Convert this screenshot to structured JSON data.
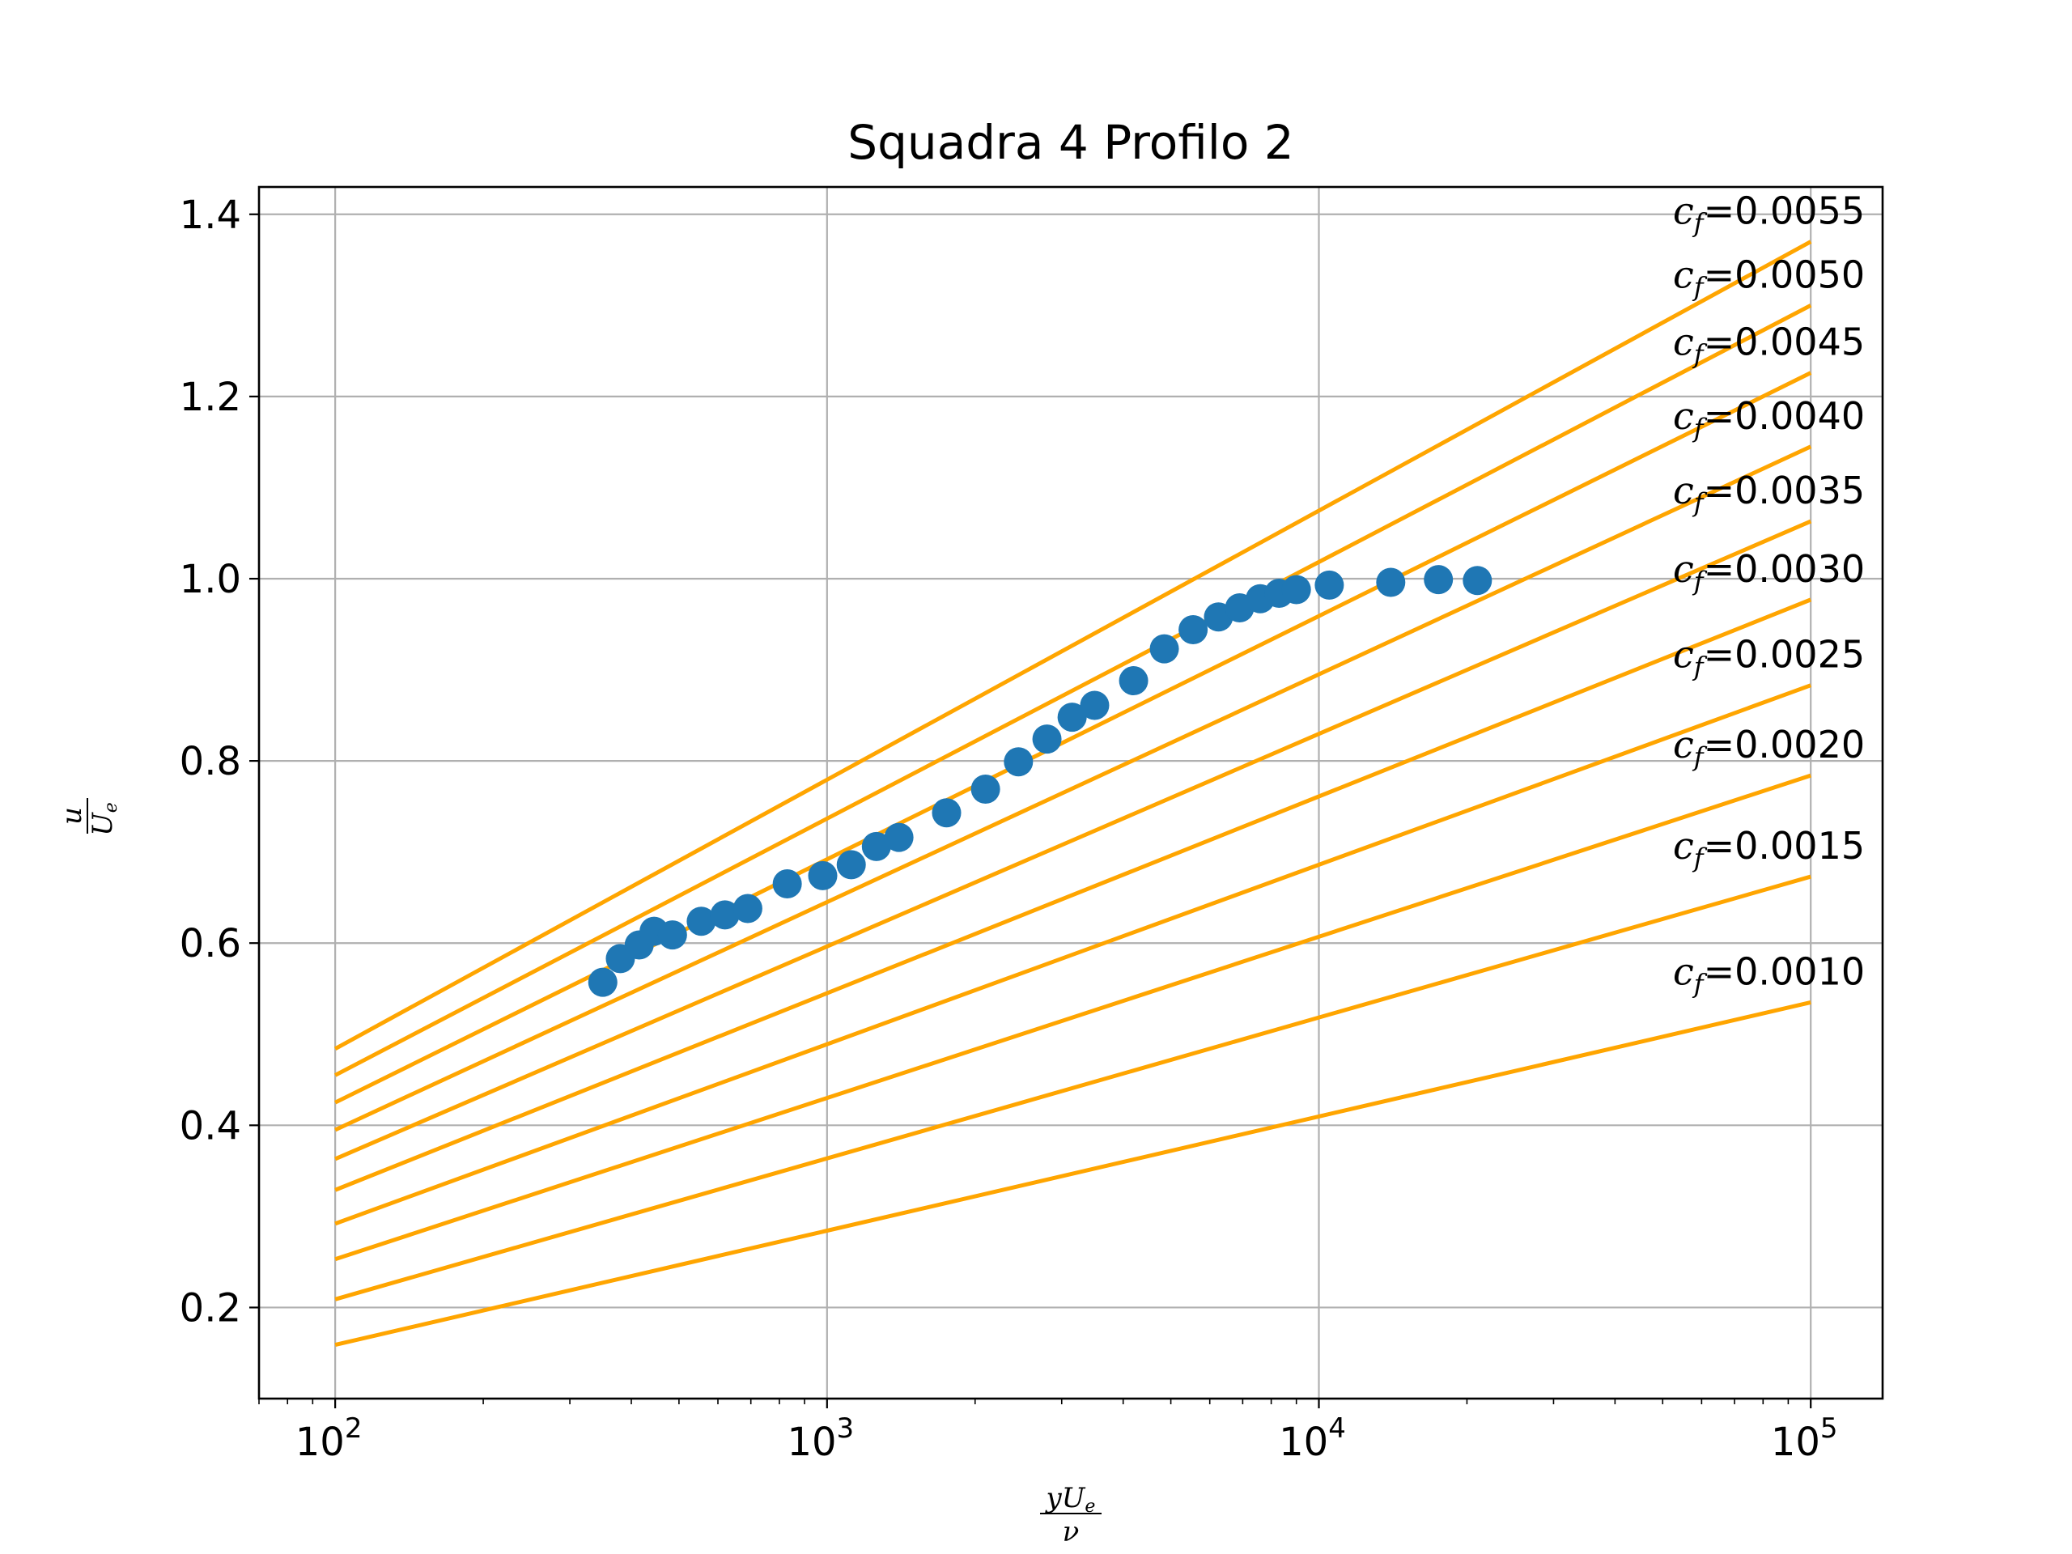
{
  "chart_data": {
    "type": "line",
    "title": "Squadra 4 Profilo 2",
    "xlabel": "yU_e / ν",
    "ylabel": "u / U_e",
    "x_scale": "log",
    "xlim": [
      70,
      140000
    ],
    "ylim": [
      0.1,
      1.43
    ],
    "x_ticks": [
      100,
      1000,
      10000,
      100000
    ],
    "x_tick_labels": [
      {
        "base": "10",
        "exp": "2"
      },
      {
        "base": "10",
        "exp": "3"
      },
      {
        "base": "10",
        "exp": "4"
      },
      {
        "base": "10",
        "exp": "5"
      }
    ],
    "y_ticks": [
      0.2,
      0.4,
      0.6,
      0.8,
      1.0,
      1.2,
      1.4
    ],
    "y_tick_labels": [
      "0.2",
      "0.4",
      "0.6",
      "0.8",
      "1.0",
      "1.2",
      "1.4"
    ],
    "grid": true,
    "line_color": "#FFA500",
    "marker_color": "#1F77B4",
    "cf_lines": [
      {
        "cf_value": "0.0010",
        "x": [
          100,
          100000
        ],
        "y": [
          0.159,
          0.535
        ]
      },
      {
        "cf_value": "0.0015",
        "x": [
          100,
          100000
        ],
        "y": [
          0.209,
          0.673
        ]
      },
      {
        "cf_value": "0.0020",
        "x": [
          100,
          100000
        ],
        "y": [
          0.253,
          0.784
        ]
      },
      {
        "cf_value": "0.0025",
        "x": [
          100,
          100000
        ],
        "y": [
          0.292,
          0.883
        ]
      },
      {
        "cf_value": "0.0030",
        "x": [
          100,
          100000
        ],
        "y": [
          0.329,
          0.977
        ]
      },
      {
        "cf_value": "0.0035",
        "x": [
          100,
          100000
        ],
        "y": [
          0.363,
          1.063
        ]
      },
      {
        "cf_value": "0.0040",
        "x": [
          100,
          100000
        ],
        "y": [
          0.395,
          1.145
        ]
      },
      {
        "cf_value": "0.0045",
        "x": [
          100,
          100000
        ],
        "y": [
          0.425,
          1.226
        ]
      },
      {
        "cf_value": "0.0050",
        "x": [
          100,
          100000
        ],
        "y": [
          0.455,
          1.3
        ]
      },
      {
        "cf_value": "0.0055",
        "x": [
          100,
          100000
        ],
        "y": [
          0.484,
          1.37
        ]
      }
    ],
    "series": [
      {
        "type": "scatter",
        "x": [
          350,
          380,
          415,
          445,
          485,
          555,
          620,
          690,
          830,
          980,
          1120,
          1260,
          1400,
          1750,
          2100,
          2450,
          2800,
          3150,
          3500,
          4200,
          4850,
          5550,
          6250,
          6900,
          7600,
          8300,
          9000,
          10500,
          14000,
          17500,
          21000
        ],
        "y": [
          0.557,
          0.583,
          0.598,
          0.613,
          0.609,
          0.624,
          0.631,
          0.638,
          0.665,
          0.674,
          0.686,
          0.706,
          0.716,
          0.743,
          0.769,
          0.799,
          0.824,
          0.848,
          0.861,
          0.888,
          0.923,
          0.944,
          0.958,
          0.968,
          0.978,
          0.984,
          0.988,
          0.993,
          0.996,
          0.999,
          0.998
        ]
      }
    ]
  }
}
